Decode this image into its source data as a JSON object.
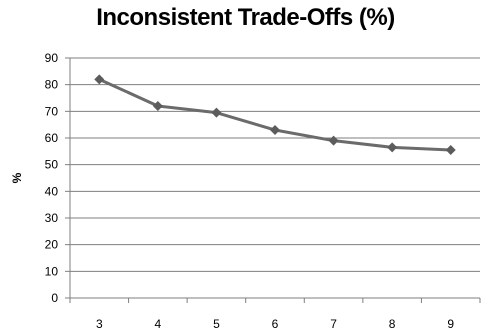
{
  "chart_data": {
    "type": "line",
    "title": "Inconsistent Trade-Offs (%)",
    "xlabel": "",
    "ylabel": "%",
    "x": [
      3,
      4,
      5,
      6,
      7,
      8,
      9
    ],
    "series": [
      {
        "values": [
          82,
          72,
          69.5,
          63,
          59,
          56.5,
          55.5
        ]
      }
    ],
    "ylim": [
      0,
      90
    ],
    "yticks": [
      0,
      10,
      20,
      30,
      40,
      50,
      60,
      70,
      80,
      90
    ],
    "grid": true,
    "legend": "none",
    "marker": "diamond",
    "colors": {
      "line": "#6b6b6b",
      "marker": "#5c5c5c",
      "grid": "#7f7f7f",
      "axis": "#7f7f7f"
    }
  }
}
